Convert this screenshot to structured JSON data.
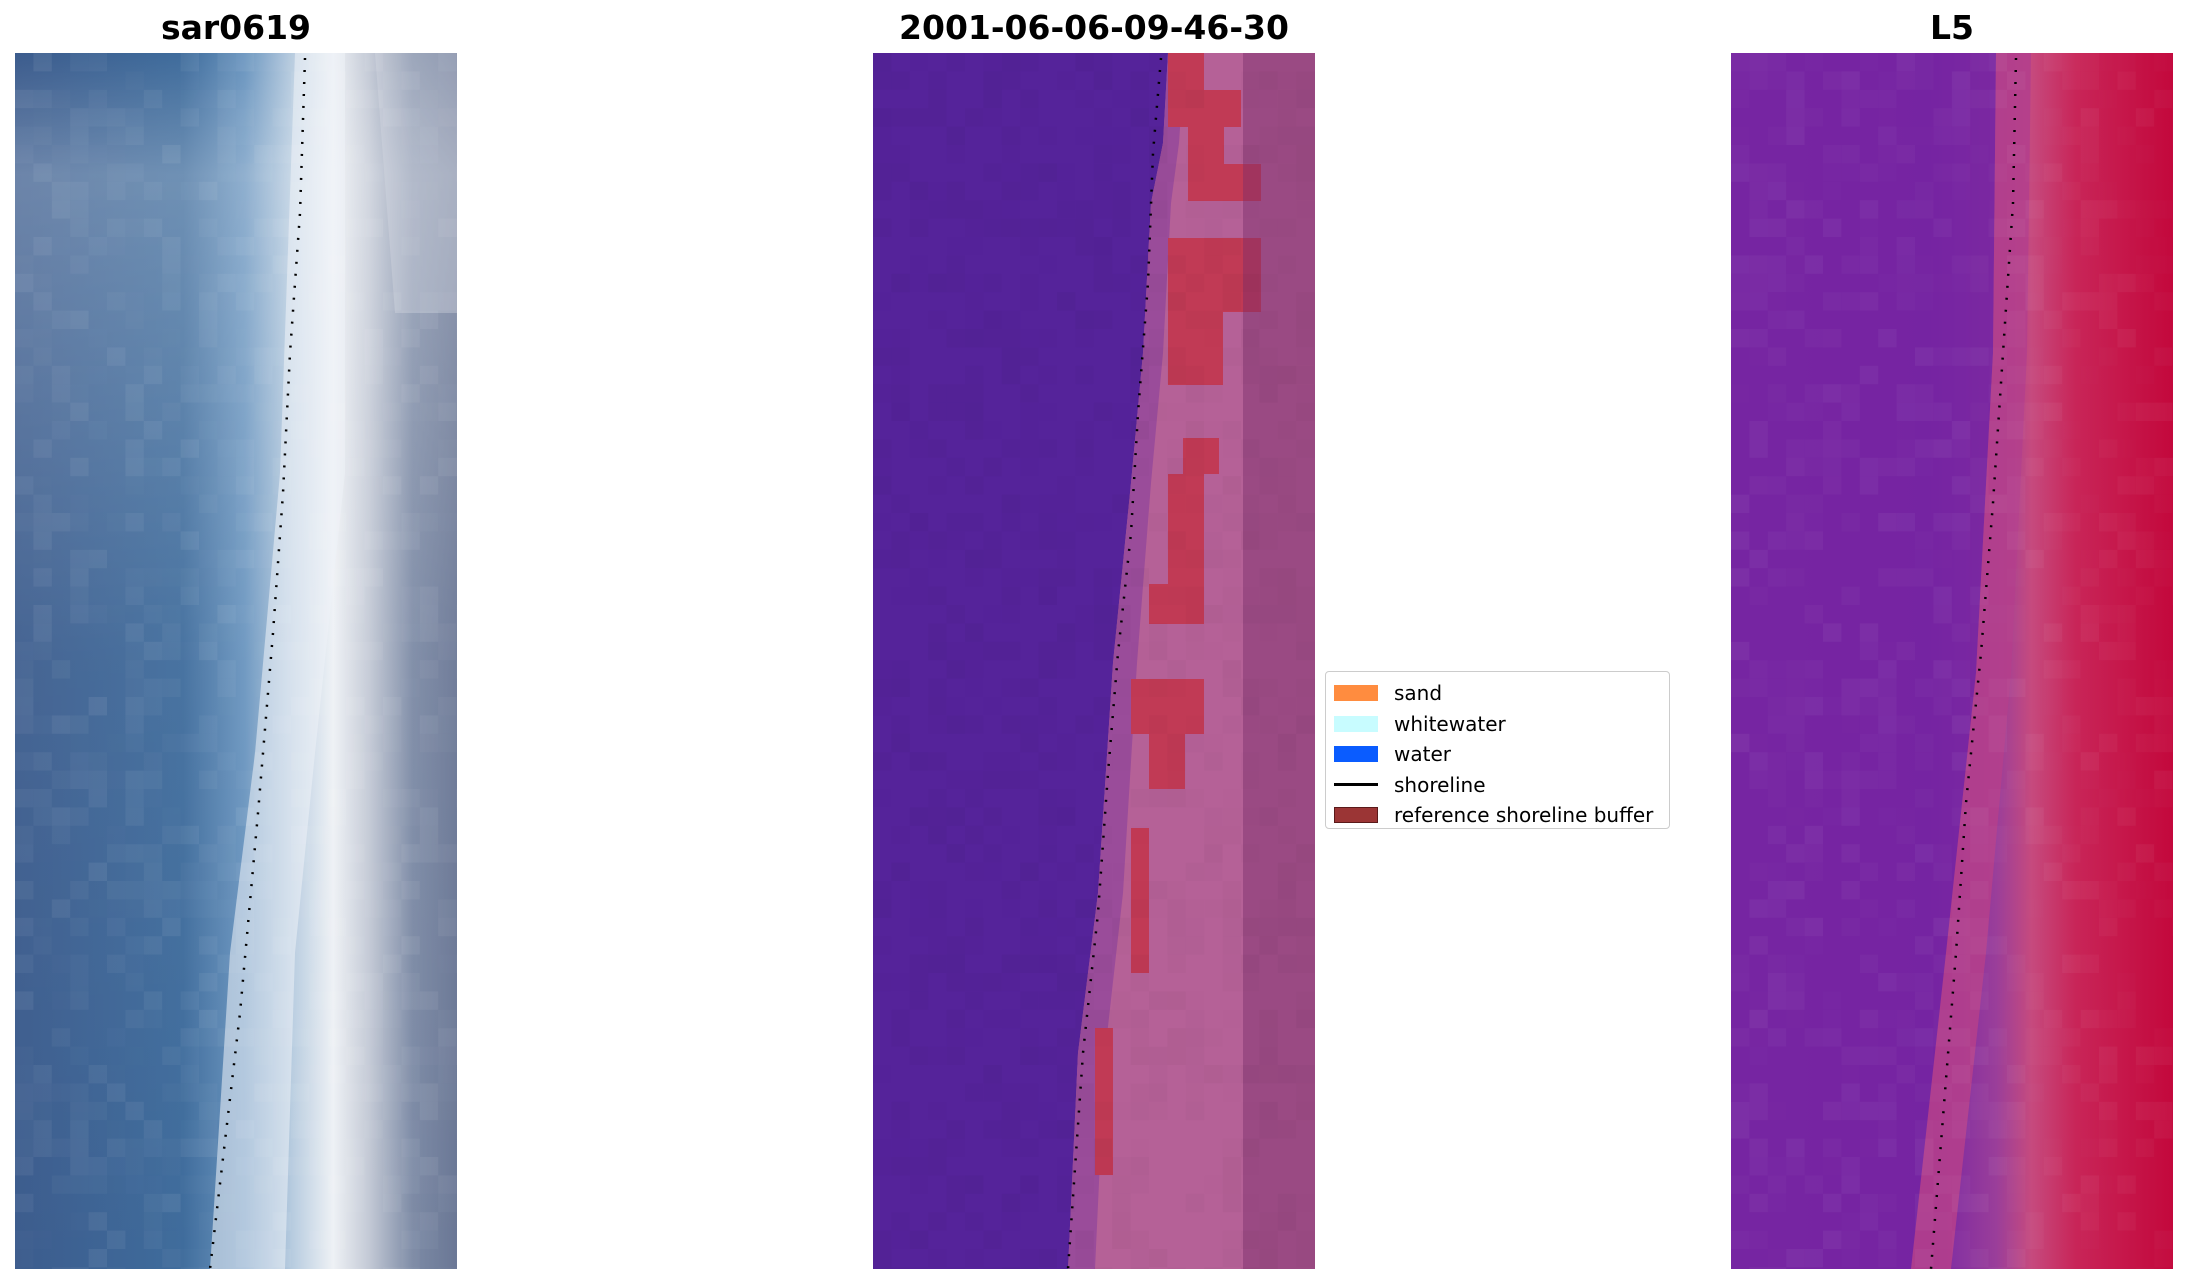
{
  "panels": [
    {
      "title": "sar0619",
      "kind": "rgb"
    },
    {
      "title": "2001-06-06-09-46-30",
      "kind": "classified"
    },
    {
      "title": "L5",
      "kind": "index"
    }
  ],
  "legend": {
    "items": [
      {
        "label": "sand",
        "color": "#ff8c3f",
        "type": "patch"
      },
      {
        "label": "whitewater",
        "color": "#c8fcff",
        "type": "patch"
      },
      {
        "label": "water",
        "color": "#0a5cff",
        "type": "patch"
      },
      {
        "label": "shoreline",
        "color": "#000000",
        "type": "line"
      },
      {
        "label": "reference shoreline buffer",
        "color": "#9b3535",
        "type": "patch"
      }
    ]
  },
  "colors": {
    "sea_blue": "#3b5e90",
    "classified_water": "#55239a",
    "buffer_red": "#c13a55",
    "buffer_pink": "#b85a95",
    "index_purple": "#7c2aa0",
    "index_red": "#c3083c"
  }
}
